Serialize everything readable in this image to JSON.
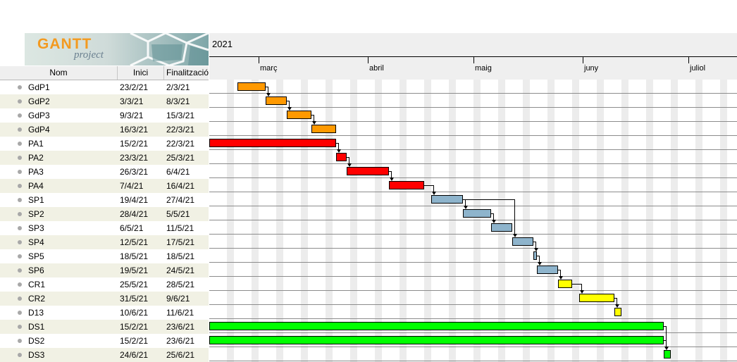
{
  "logo": {
    "text": "GANTT",
    "sub": "project"
  },
  "table": {
    "headers": {
      "name": "Nom",
      "start": "Inici",
      "end": "Finalització"
    },
    "rows": [
      {
        "name": "GdP1",
        "start": "23/2/21",
        "end": "2/3/21"
      },
      {
        "name": "GdP2",
        "start": "3/3/21",
        "end": "8/3/21"
      },
      {
        "name": "GdP3",
        "start": "9/3/21",
        "end": "15/3/21"
      },
      {
        "name": "GdP4",
        "start": "16/3/21",
        "end": "22/3/21"
      },
      {
        "name": "PA1",
        "start": "15/2/21",
        "end": "22/3/21"
      },
      {
        "name": "PA2",
        "start": "23/3/21",
        "end": "25/3/21"
      },
      {
        "name": "PA3",
        "start": "26/3/21",
        "end": "6/4/21"
      },
      {
        "name": "PA4",
        "start": "7/4/21",
        "end": "16/4/21"
      },
      {
        "name": "SP1",
        "start": "19/4/21",
        "end": "27/4/21"
      },
      {
        "name": "SP2",
        "start": "28/4/21",
        "end": "5/5/21"
      },
      {
        "name": "SP3",
        "start": "6/5/21",
        "end": "11/5/21"
      },
      {
        "name": "SP4",
        "start": "12/5/21",
        "end": "17/5/21"
      },
      {
        "name": "SP5",
        "start": "18/5/21",
        "end": "18/5/21"
      },
      {
        "name": "SP6",
        "start": "19/5/21",
        "end": "24/5/21"
      },
      {
        "name": "CR1",
        "start": "25/5/21",
        "end": "28/5/21"
      },
      {
        "name": "CR2",
        "start": "31/5/21",
        "end": "9/6/21"
      },
      {
        "name": "D13",
        "start": "10/6/21",
        "end": "11/6/21"
      },
      {
        "name": "DS1",
        "start": "15/2/21",
        "end": "23/6/21"
      },
      {
        "name": "DS2",
        "start": "15/2/21",
        "end": "23/6/21"
      },
      {
        "name": "DS3",
        "start": "24/6/21",
        "end": "25/6/21"
      }
    ]
  },
  "chart": {
    "year": "2021",
    "months": [
      {
        "label": "març",
        "date": "2021-03-01"
      },
      {
        "label": "abril",
        "date": "2021-04-01"
      },
      {
        "label": "maig",
        "date": "2021-05-01"
      },
      {
        "label": "juny",
        "date": "2021-06-01"
      },
      {
        "label": "juliol",
        "date": "2021-07-01"
      }
    ],
    "colors": {
      "gdp": "#ff9900",
      "pa": "#ff0000",
      "sp": "#8eb4cc",
      "cr": "#ffff00",
      "ds": "#00ff00"
    },
    "bar_groups": [
      "gdp",
      "gdp",
      "gdp",
      "gdp",
      "pa",
      "pa",
      "pa",
      "pa",
      "sp",
      "sp",
      "sp",
      "sp",
      "sp",
      "sp",
      "cr",
      "cr",
      "cr",
      "ds",
      "ds",
      "ds"
    ],
    "dependencies": [
      [
        0,
        1
      ],
      [
        1,
        2
      ],
      [
        2,
        3
      ],
      [
        4,
        5
      ],
      [
        5,
        6
      ],
      [
        6,
        7
      ],
      [
        7,
        8
      ],
      [
        8,
        9
      ],
      [
        9,
        10
      ],
      [
        8,
        11
      ],
      [
        11,
        12
      ],
      [
        12,
        13
      ],
      [
        13,
        14
      ],
      [
        14,
        15
      ],
      [
        15,
        16
      ],
      [
        17,
        19
      ],
      [
        18,
        19
      ]
    ]
  }
}
